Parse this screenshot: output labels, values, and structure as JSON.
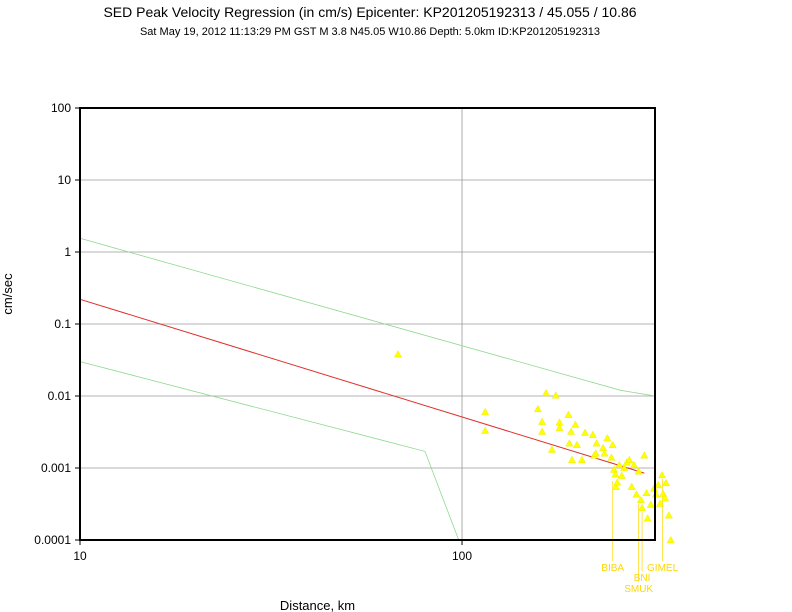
{
  "header": {
    "title": "SED Peak Velocity Regression (in cm/s) Epicenter: KP201205192313 / 45.055 / 10.86",
    "subtitle": "Sat May 19, 2012 11:13:29 PM GST   M 3.8   N45.05 W10.86   Depth: 5.0km   ID:KP201205192313"
  },
  "chart_data": {
    "type": "scatter",
    "xlabel": "Distance, km",
    "ylabel": "cm/sec",
    "xscale": "log",
    "yscale": "log",
    "xlim": [
      10,
      320
    ],
    "ylim": [
      0.0001,
      100
    ],
    "x_ticks": [
      {
        "value": 10,
        "label": "10"
      },
      {
        "value": 100,
        "label": "100"
      }
    ],
    "y_ticks": [
      {
        "value": 100,
        "label": "100"
      },
      {
        "value": 10,
        "label": "10"
      },
      {
        "value": 1,
        "label": "1"
      },
      {
        "value": 0.1,
        "label": "0.1"
      },
      {
        "value": 0.01,
        "label": "0.01"
      },
      {
        "value": 0.001,
        "label": "0.001"
      },
      {
        "value": 0.0001,
        "label": "0.0001"
      }
    ],
    "grid": "decades",
    "colors": {
      "regression": "#e0302a",
      "bounds": "#8fd98f",
      "points": "#ffff00",
      "labels": "#ffd700",
      "grid": "#9a9a9a"
    },
    "regression_line": [
      [
        10,
        0.22
      ],
      [
        300,
        0.00085
      ]
    ],
    "upper_bound": [
      [
        10,
        1.55
      ],
      [
        260,
        0.012
      ],
      [
        320,
        0.01
      ]
    ],
    "lower_bound": [
      [
        10,
        0.03
      ],
      [
        80,
        0.0017
      ],
      [
        98,
        0.0001
      ]
    ],
    "points": [
      [
        68,
        0.038
      ],
      [
        115,
        0.006
      ],
      [
        115,
        0.0033
      ],
      [
        158,
        0.0066
      ],
      [
        162,
        0.0044
      ],
      [
        162,
        0.0032
      ],
      [
        166,
        0.011
      ],
      [
        172,
        0.0018
      ],
      [
        176,
        0.0102
      ],
      [
        180,
        0.0043
      ],
      [
        180,
        0.0036
      ],
      [
        190,
        0.0055
      ],
      [
        191,
        0.0022
      ],
      [
        193,
        0.0032
      ],
      [
        194,
        0.0013
      ],
      [
        198,
        0.004
      ],
      [
        200,
        0.0021
      ],
      [
        206,
        0.0013
      ],
      [
        210,
        0.0031
      ],
      [
        220,
        0.0029
      ],
      [
        222,
        0.0015
      ],
      [
        224,
        0.0016
      ],
      [
        225,
        0.0022
      ],
      [
        234,
        0.0019
      ],
      [
        236,
        0.0016
      ],
      [
        240,
        0.0026
      ],
      [
        246,
        0.0014
      ],
      [
        248,
        0.0021
      ],
      [
        250,
        0.00095
      ],
      [
        252,
        0.00082
      ],
      [
        253,
        0.00055
      ],
      [
        255,
        0.00063
      ],
      [
        258,
        0.0011
      ],
      [
        262,
        0.00078
      ],
      [
        266,
        0.001
      ],
      [
        270,
        0.0012
      ],
      [
        274,
        0.0013
      ],
      [
        278,
        0.00055
      ],
      [
        282,
        0.0011
      ],
      [
        286,
        0.00043
      ],
      [
        290,
        0.0009
      ],
      [
        294,
        0.00036
      ],
      [
        296,
        0.00028
      ],
      [
        300,
        0.0015
      ],
      [
        304,
        0.00045
      ],
      [
        306,
        0.0002
      ],
      [
        312,
        0.00031
      ],
      [
        318,
        0.00052
      ],
      [
        322,
        0.00043
      ],
      [
        326,
        0.00058
      ],
      [
        330,
        0.00032
      ],
      [
        334,
        0.0008
      ],
      [
        336,
        0.00044
      ],
      [
        340,
        0.00038
      ],
      [
        342,
        0.00062
      ],
      [
        348,
        0.00022
      ],
      [
        352,
        0.0001
      ]
    ],
    "station_labels": [
      {
        "name": "BIBA",
        "x": 248,
        "y": 0.00075
      },
      {
        "name": "BNI",
        "x": 296,
        "y": 0.00028
      },
      {
        "name": "SMUK",
        "x": 290,
        "y": 0.00036
      },
      {
        "name": "GIMEL",
        "x": 335,
        "y": 0.0008
      }
    ]
  }
}
